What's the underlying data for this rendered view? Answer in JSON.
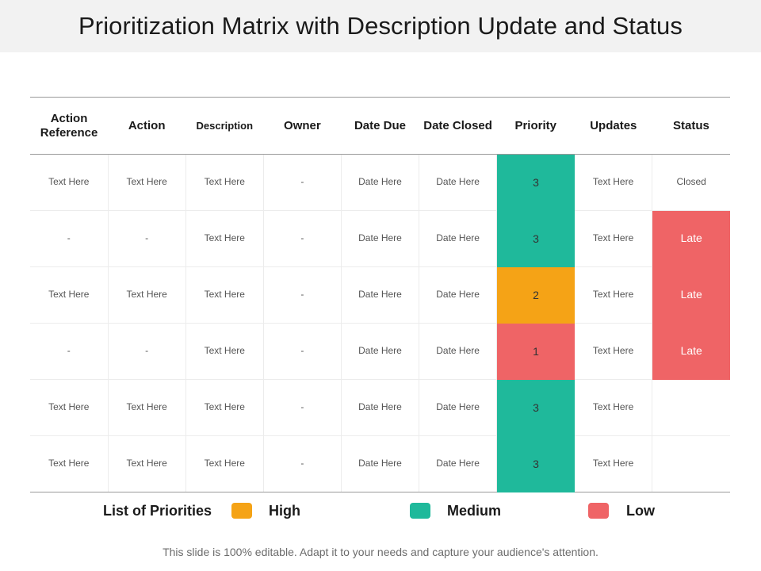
{
  "title": "Prioritization Matrix with Description Update and Status",
  "colors": {
    "high": "#f5a316",
    "medium": "#1fb99b",
    "low": "#ef6466",
    "title_bg": "#f2f2f2"
  },
  "table": {
    "headers": [
      "Action Reference",
      "Action",
      "Description",
      "Owner",
      "Date Due",
      "Date Closed",
      "Priority",
      "Updates",
      "Status"
    ],
    "rows": [
      {
        "cells": [
          "Text Here",
          "Text Here",
          "Text Here",
          "-",
          "Date Here",
          "Date Here",
          "3",
          "Text Here",
          "Closed"
        ],
        "priority_level": "medium",
        "status_highlight": ""
      },
      {
        "cells": [
          "-",
          "-",
          "Text Here",
          "-",
          "Date Here",
          "Date Here",
          "3",
          "Text Here",
          "Late"
        ],
        "priority_level": "medium",
        "status_highlight": "low"
      },
      {
        "cells": [
          "Text Here",
          "Text Here",
          "Text Here",
          "-",
          "Date Here",
          "Date Here",
          "2",
          "Text Here",
          "Late"
        ],
        "priority_level": "high",
        "status_highlight": "low"
      },
      {
        "cells": [
          "-",
          "-",
          "Text Here",
          "-",
          "Date Here",
          "Date Here",
          "1",
          "Text Here",
          "Late"
        ],
        "priority_level": "low",
        "status_highlight": "low"
      },
      {
        "cells": [
          "Text Here",
          "Text Here",
          "Text Here",
          "-",
          "Date Here",
          "Date Here",
          "3",
          "Text Here",
          ""
        ],
        "priority_level": "medium",
        "status_highlight": ""
      },
      {
        "cells": [
          "Text Here",
          "Text Here",
          "Text Here",
          "-",
          "Date Here",
          "Date Here",
          "3",
          "Text Here",
          ""
        ],
        "priority_level": "medium",
        "status_highlight": ""
      }
    ]
  },
  "legend": {
    "title": "List of Priorities",
    "items": [
      {
        "label": "High",
        "level": "high"
      },
      {
        "label": "Medium",
        "level": "medium"
      },
      {
        "label": "Low",
        "level": "low"
      }
    ]
  },
  "footer": "This slide is 100% editable. Adapt it to your needs and capture your audience's attention."
}
